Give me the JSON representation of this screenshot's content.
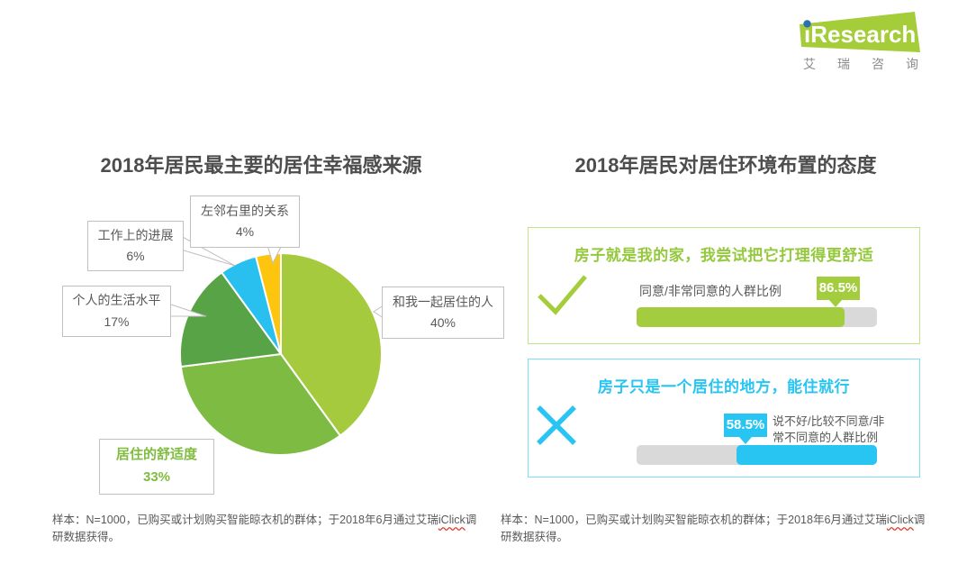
{
  "logo": {
    "brand": "iResearch",
    "subtext": "艾瑞咨询",
    "green": "#a5cd39",
    "dot_blue": "#2e6fb0",
    "subtext_gray": "#8c8c8c"
  },
  "chart_data": [
    {
      "type": "pie",
      "title": "2018年居民最主要的居住幸福感来源",
      "labels": [
        "和我一起居住的人",
        "居住的舒适度",
        "个人的生活水平",
        "工作上的进展",
        "左邻右里的关系"
      ],
      "values": [
        40,
        33,
        17,
        6,
        4
      ],
      "value_labels": [
        "40%",
        "33%",
        "17%",
        "6%",
        "4%"
      ],
      "unit": "%",
      "colors": [
        "#a6ca3d",
        "#7dbb42",
        "#57a345",
        "#29c0f0",
        "#fdc50d"
      ],
      "highlighted_slice": "居住的舒适度",
      "start_angle_deg": 0,
      "direction": "clockwise",
      "legend": "none"
    },
    {
      "type": "bar",
      "title": "2018年居民对居住环境布置的态度",
      "xlim": [
        0,
        100
      ],
      "track_color": "#d9d9d9",
      "bars": [
        {
          "statement": "房子就是我的家，我尝试把它打理得更舒适",
          "metric_label": "同意/非常同意的人群比例",
          "value": 86.5,
          "value_label": "86.5%",
          "color": "#a3cc3f",
          "verdict_icon": "check",
          "fill_align": "left"
        },
        {
          "statement": "房子只是一个居住的地方，能住就行",
          "metric_label": "说不好/比较不同意/非常不同意的人群比例",
          "value": 58.5,
          "value_label": "58.5%",
          "color": "#29c5f2",
          "verdict_icon": "cross",
          "fill_align": "right"
        }
      ]
    }
  ],
  "footnote": {
    "pre": "样本：N=1000，已购买或计划购买智能晾衣机的群体；于2018年6月通过艾瑞",
    "brand_word": "iClick",
    "post": "调研数据获得。"
  }
}
